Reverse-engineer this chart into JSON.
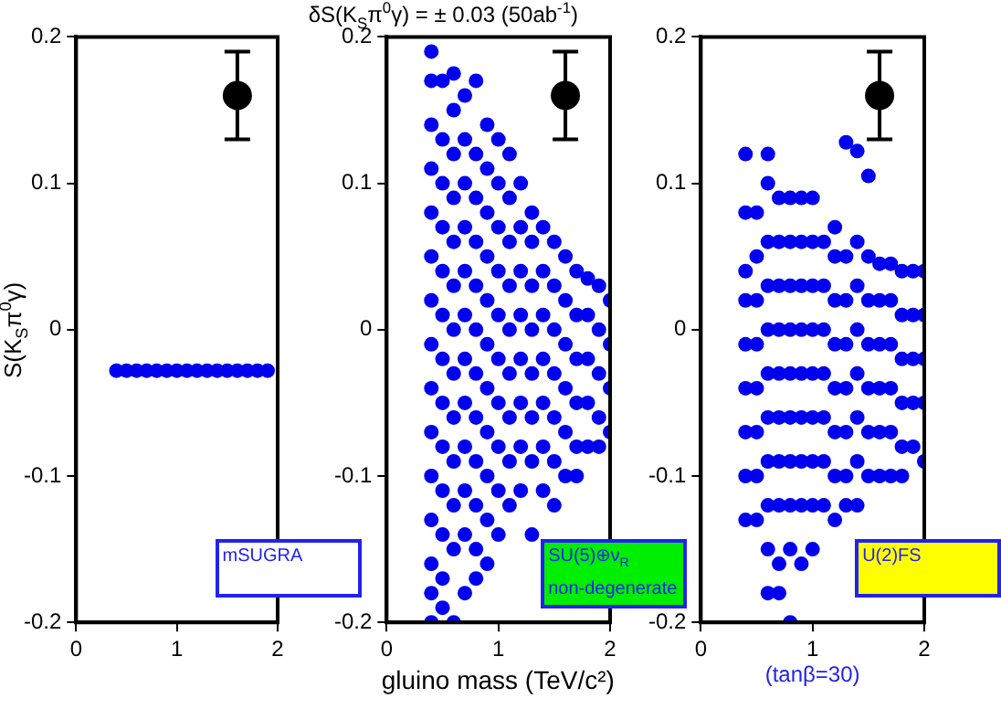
{
  "chart_data": [
    {
      "type": "scatter",
      "ylabel": "S(K$_{S}$π$^{0}$γ)",
      "xlim": [
        0,
        2
      ],
      "xticks": [
        0,
        1,
        2
      ],
      "ylim": [
        -0.2,
        0.2
      ],
      "yticks": [
        -0.2,
        -0.1,
        0,
        0.1,
        0.2
      ],
      "grid": false,
      "legend": false,
      "marker": "circle",
      "annotations": [
        "mSUGRA"
      ],
      "series": [
        {
          "color": "#0000ee",
          "x": [
            0.4,
            0.5,
            0.6,
            0.7,
            0.8,
            0.9,
            1.0,
            1.1,
            1.2,
            1.3,
            1.4,
            1.5,
            1.6,
            1.7,
            1.8,
            1.9
          ],
          "values": [
            -0.028,
            -0.028,
            -0.028,
            -0.028,
            -0.028,
            -0.028,
            -0.028,
            -0.028,
            -0.028,
            -0.028,
            -0.028,
            -0.028,
            -0.028,
            -0.028,
            -0.028,
            -0.028
          ]
        },
        {
          "color": "#000000",
          "x": [
            1.6
          ],
          "values": [
            0.16
          ],
          "errors": [
            0.03
          ]
        }
      ]
    },
    {
      "type": "scatter",
      "title": "δS(K$_{S}$π$^{0}$γ) = ± 0.03 (50ab$^{-1}$)",
      "xlabel": "gluino mass (TeV/c²)",
      "xlim": [
        0,
        2
      ],
      "xticks": [
        0,
        1,
        2
      ],
      "ylim": [
        -0.2,
        0.2
      ],
      "yticks": [
        -0.2,
        -0.1,
        0,
        0.1,
        0.2
      ],
      "grid": false,
      "legend": false,
      "marker": "circle",
      "annotations": [
        "SU(5)⊕ν$_{R}$\nnon-degenerate"
      ],
      "series": [
        {
          "color": "#0000ee",
          "x": [
            0.4,
            0.4,
            0.4,
            0.4,
            0.4,
            0.4,
            0.4,
            0.4,
            0.4,
            0.4,
            0.4,
            0.4,
            0.4,
            0.4,
            0.4,
            0.5,
            0.5,
            0.5,
            0.5,
            0.5,
            0.5,
            0.5,
            0.5,
            0.5,
            0.5,
            0.5,
            0.5,
            0.5,
            0.6,
            0.6,
            0.6,
            0.6,
            0.6,
            0.6,
            0.6,
            0.6,
            0.6,
            0.6,
            0.6,
            0.6,
            0.6,
            0.7,
            0.7,
            0.7,
            0.7,
            0.7,
            0.7,
            0.7,
            0.7,
            0.7,
            0.7,
            0.7,
            0.7,
            0.8,
            0.8,
            0.8,
            0.8,
            0.8,
            0.8,
            0.8,
            0.8,
            0.8,
            0.8,
            0.8,
            0.8,
            0.9,
            0.9,
            0.9,
            0.9,
            0.9,
            0.9,
            0.9,
            0.9,
            0.9,
            0.9,
            0.9,
            1.0,
            1.0,
            1.0,
            1.0,
            1.0,
            1.0,
            1.0,
            1.0,
            1.0,
            1.0,
            1.1,
            1.1,
            1.1,
            1.1,
            1.1,
            1.1,
            1.1,
            1.1,
            1.1,
            1.2,
            1.2,
            1.2,
            1.2,
            1.2,
            1.2,
            1.2,
            1.2,
            1.3,
            1.3,
            1.3,
            1.3,
            1.3,
            1.3,
            1.3,
            1.3,
            1.4,
            1.4,
            1.4,
            1.4,
            1.4,
            1.4,
            1.4,
            1.5,
            1.5,
            1.5,
            1.5,
            1.5,
            1.5,
            1.5,
            1.6,
            1.6,
            1.6,
            1.6,
            1.6,
            1.6,
            1.7,
            1.7,
            1.7,
            1.7,
            1.7,
            1.7,
            1.8,
            1.8,
            1.8,
            1.8,
            1.8,
            1.9,
            1.9,
            1.9,
            1.9,
            1.9,
            2.0,
            2.0,
            2.0,
            2.0
          ],
          "values": [
            0.19,
            0.17,
            0.14,
            0.11,
            0.08,
            0.05,
            0.02,
            -0.01,
            -0.04,
            -0.07,
            -0.1,
            -0.13,
            -0.16,
            -0.18,
            -0.2,
            0.17,
            0.13,
            0.1,
            0.07,
            0.04,
            0.01,
            -0.02,
            -0.05,
            -0.08,
            -0.11,
            -0.14,
            -0.17,
            -0.19,
            0.175,
            0.15,
            0.12,
            0.09,
            0.06,
            0.03,
            0,
            -0.03,
            -0.06,
            -0.09,
            -0.12,
            -0.15,
            -0.2,
            0.16,
            0.13,
            0.1,
            0.07,
            0.04,
            0.01,
            -0.02,
            -0.05,
            -0.08,
            -0.11,
            -0.14,
            -0.18,
            0.17,
            0.12,
            0.09,
            0.06,
            0.03,
            0,
            -0.03,
            -0.06,
            -0.09,
            -0.12,
            -0.15,
            -0.17,
            0.14,
            0.11,
            0.08,
            0.05,
            0.02,
            -0.01,
            -0.04,
            -0.07,
            -0.1,
            -0.13,
            -0.16,
            0.13,
            0.1,
            0.07,
            0.04,
            0.01,
            -0.02,
            -0.05,
            -0.08,
            -0.11,
            -0.14,
            0.12,
            0.09,
            0.06,
            0.03,
            0,
            -0.03,
            -0.06,
            -0.09,
            -0.12,
            0.1,
            0.07,
            0.04,
            0.01,
            -0.02,
            -0.05,
            -0.08,
            -0.11,
            0.08,
            0.06,
            0.03,
            0,
            -0.03,
            -0.06,
            -0.09,
            -0.14,
            0.07,
            0.04,
            0.01,
            -0.02,
            -0.05,
            -0.08,
            -0.11,
            0.06,
            0.03,
            0,
            -0.03,
            -0.06,
            -0.09,
            -0.12,
            0.05,
            0.02,
            -0.01,
            -0.04,
            -0.07,
            -0.1,
            0.04,
            0.01,
            -0.02,
            -0.05,
            -0.08,
            -0.1,
            0.035,
            0.01,
            -0.02,
            -0.05,
            -0.08,
            0.03,
            0,
            -0.03,
            -0.06,
            -0.08,
            0.02,
            -0.01,
            -0.04,
            -0.07
          ]
        },
        {
          "color": "#000000",
          "x": [
            1.6
          ],
          "values": [
            0.16
          ],
          "errors": [
            0.03
          ]
        }
      ]
    },
    {
      "type": "scatter",
      "xlim": [
        0,
        2
      ],
      "xticks": [
        0,
        1,
        2
      ],
      "ylim": [
        -0.2,
        0.2
      ],
      "yticks": [
        -0.2,
        -0.1,
        0,
        0.1,
        0.2
      ],
      "grid": false,
      "legend": false,
      "marker": "circle",
      "annotations": [
        "U(2)FS",
        "(tanβ=30)"
      ],
      "series": [
        {
          "color": "#0000ee",
          "x": [
            0.4,
            0.4,
            0.4,
            0.4,
            0.4,
            0.4,
            0.4,
            0.4,
            0.4,
            0.5,
            0.5,
            0.5,
            0.5,
            0.5,
            0.5,
            0.5,
            0.5,
            0.6,
            0.6,
            0.6,
            0.6,
            0.6,
            0.6,
            0.6,
            0.6,
            0.6,
            0.6,
            0.6,
            0.7,
            0.7,
            0.7,
            0.7,
            0.7,
            0.7,
            0.7,
            0.7,
            0.7,
            0.7,
            0.8,
            0.8,
            0.8,
            0.8,
            0.8,
            0.8,
            0.8,
            0.8,
            0.8,
            0.8,
            0.9,
            0.9,
            0.9,
            0.9,
            0.9,
            0.9,
            0.9,
            0.9,
            0.9,
            1.0,
            1.0,
            1.0,
            1.0,
            1.0,
            1.0,
            1.0,
            1.0,
            1.0,
            1.1,
            1.1,
            1.1,
            1.1,
            1.1,
            1.1,
            1.1,
            1.2,
            1.2,
            1.2,
            1.2,
            1.2,
            1.2,
            1.2,
            1.2,
            1.3,
            1.3,
            1.3,
            1.3,
            1.3,
            1.3,
            1.3,
            1.3,
            1.4,
            1.4,
            1.4,
            1.4,
            1.4,
            1.4,
            1.4,
            1.4,
            1.5,
            1.5,
            1.5,
            1.5,
            1.5,
            1.5,
            1.5,
            1.6,
            1.6,
            1.6,
            1.6,
            1.6,
            1.6,
            1.7,
            1.7,
            1.7,
            1.7,
            1.7,
            1.7,
            1.8,
            1.8,
            1.8,
            1.8,
            1.8,
            1.8,
            1.9,
            1.9,
            1.9,
            1.9,
            1.9,
            2.0,
            2.0,
            2.0,
            2.0,
            2.0
          ],
          "values": [
            0.12,
            0.08,
            0.04,
            0.02,
            -0.01,
            -0.04,
            -0.07,
            -0.1,
            -0.13,
            0.08,
            0.05,
            0.02,
            -0.01,
            -0.04,
            -0.07,
            -0.1,
            -0.13,
            0.12,
            0.1,
            0.06,
            0.03,
            0,
            -0.03,
            -0.06,
            -0.09,
            -0.12,
            -0.15,
            -0.18,
            0.09,
            0.06,
            0.03,
            0,
            -0.03,
            -0.06,
            -0.09,
            -0.12,
            -0.16,
            -0.18,
            0.09,
            0.06,
            0.03,
            0,
            -0.03,
            -0.06,
            -0.09,
            -0.12,
            -0.15,
            -0.2,
            0.09,
            0.06,
            0.03,
            0,
            -0.03,
            -0.06,
            -0.09,
            -0.12,
            -0.16,
            0.09,
            0.06,
            0.03,
            0,
            -0.03,
            -0.06,
            -0.09,
            -0.12,
            -0.15,
            0.06,
            0.03,
            0,
            -0.03,
            -0.06,
            -0.09,
            -0.12,
            0.07,
            0.05,
            0.02,
            -0.01,
            -0.04,
            -0.07,
            -0.1,
            -0.13,
            0.128,
            0.05,
            0.02,
            -0.01,
            -0.04,
            -0.07,
            -0.1,
            -0.12,
            0.122,
            0.06,
            0.03,
            0,
            -0.03,
            -0.06,
            -0.09,
            -0.12,
            0.105,
            0.05,
            0.02,
            -0.01,
            -0.04,
            -0.07,
            -0.1,
            0.045,
            0.02,
            -0.01,
            -0.04,
            -0.07,
            -0.1,
            0.045,
            0.02,
            -0.01,
            -0.04,
            -0.07,
            -0.1,
            0.04,
            0.01,
            -0.02,
            -0.05,
            -0.08,
            -0.1,
            0.04,
            0.01,
            -0.02,
            -0.05,
            -0.08,
            0.04,
            0.01,
            -0.02,
            -0.05,
            -0.09
          ]
        },
        {
          "color": "#000000",
          "x": [
            1.6
          ],
          "values": [
            0.16
          ],
          "errors": [
            0.03
          ]
        }
      ]
    }
  ]
}
